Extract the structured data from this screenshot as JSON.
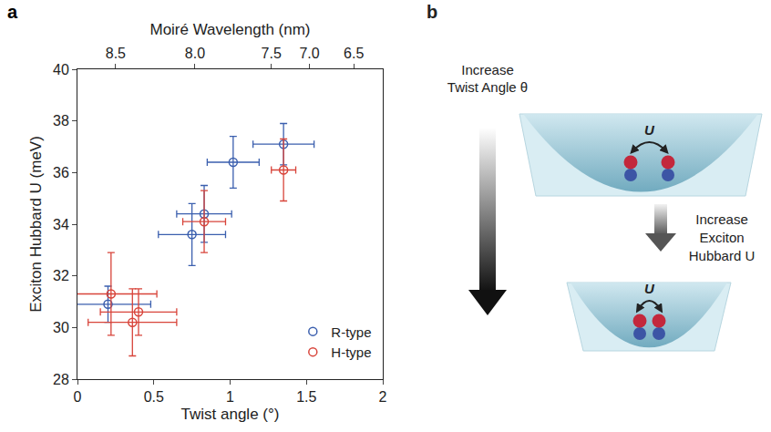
{
  "chart_data": {
    "type": "scatter",
    "panel": "a",
    "xlabel": "Twist angle (°)",
    "ylabel": "Exciton Hubbard U (meV)",
    "x2label": "Moiré Wavelength (nm)",
    "xlim": [
      0,
      2
    ],
    "xticks": [
      0,
      0.5,
      1,
      1.5,
      2
    ],
    "x2ticks": [
      {
        "value": 0.25,
        "label": "8.5"
      },
      {
        "value": 0.77,
        "label": "8.0"
      },
      {
        "value": 1.27,
        "label": "7.5"
      },
      {
        "value": 1.52,
        "label": "7.0"
      },
      {
        "value": 1.81,
        "label": "6.5"
      }
    ],
    "ylim": [
      28,
      40
    ],
    "yticks": [
      28,
      30,
      32,
      34,
      36,
      38,
      40
    ],
    "legend": "lower right",
    "marker": "open circle",
    "grid": false,
    "series": [
      {
        "name": "R-type",
        "color": "#3b5fae",
        "x": [
          0.2,
          0.75,
          0.83,
          1.02,
          1.35
        ],
        "values": [
          30.9,
          33.6,
          34.4,
          36.4,
          37.1
        ],
        "x_error": [
          0.28,
          0.22,
          0.18,
          0.17,
          0.2
        ],
        "y_error": [
          0.7,
          1.2,
          1.1,
          1.0,
          0.8
        ]
      },
      {
        "name": "H-type",
        "color": "#d8443a",
        "x": [
          0.22,
          0.36,
          0.4,
          0.83,
          1.35
        ],
        "values": [
          31.3,
          30.2,
          30.6,
          34.1,
          36.1
        ],
        "x_error": [
          0.3,
          0.29,
          0.25,
          0.14,
          0.08
        ],
        "y_error": [
          1.6,
          1.3,
          0.9,
          1.2,
          1.2
        ]
      }
    ]
  },
  "diagram": {
    "panel": "b",
    "left_arrow_label": [
      "Increase",
      "Twist Angle θ"
    ],
    "middle_arrow_label": [
      "Increase",
      "Exciton",
      "Hubbard U"
    ],
    "interaction_labels": [
      "U",
      "U"
    ]
  }
}
